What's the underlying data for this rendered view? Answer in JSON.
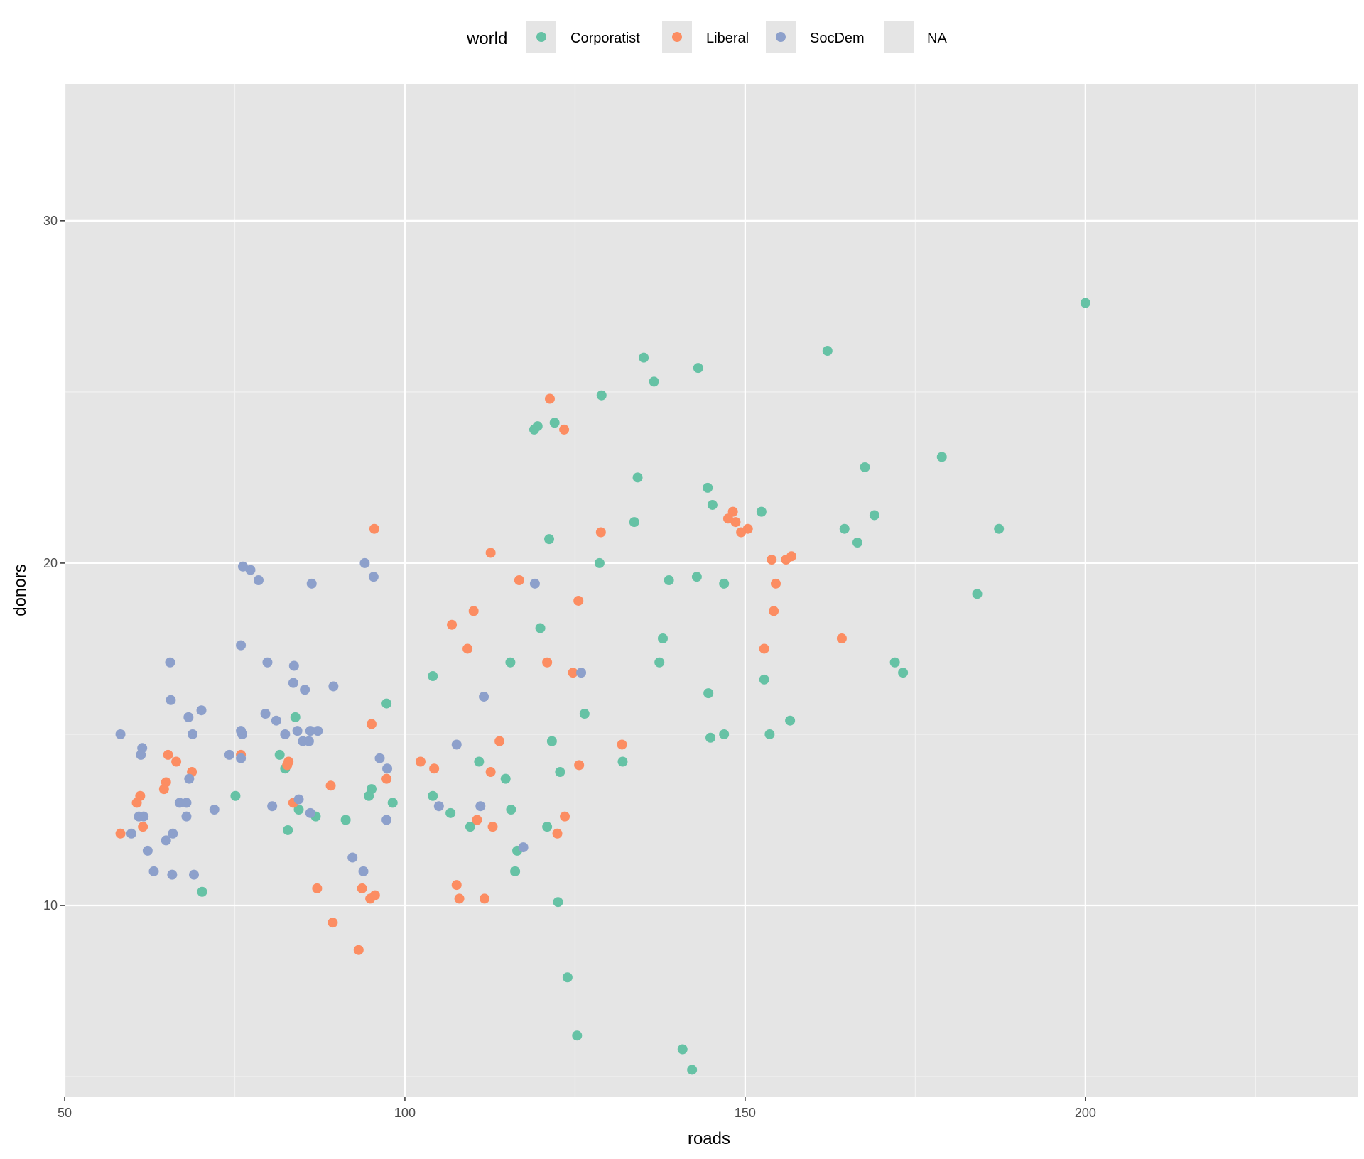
{
  "chart_data": {
    "type": "scatter",
    "xlabel": "roads",
    "ylabel": "donors",
    "xlim": [
      50,
      240
    ],
    "ylim": [
      4.4,
      34
    ],
    "x_ticks": [
      50,
      100,
      150,
      200
    ],
    "y_ticks": [
      10,
      20,
      30
    ],
    "x_tick_labels": [
      "50",
      "100",
      "150",
      "200"
    ],
    "y_tick_labels": [
      "10",
      "20",
      "30"
    ],
    "grid": true,
    "legend": {
      "title": "world",
      "placement": "top",
      "entries": [
        "Corporatist",
        "Liberal",
        "SocDem",
        "NA"
      ]
    },
    "series": [
      {
        "name": "Corporatist",
        "color": "#66C2A5",
        "points": [
          [
            200,
            27.6
          ],
          [
            162.1,
            26.2
          ],
          [
            135.1,
            26
          ],
          [
            143.1,
            25.7
          ],
          [
            136.6,
            25.3
          ],
          [
            128.9,
            24.9
          ],
          [
            119,
            23.9
          ],
          [
            119.5,
            24
          ],
          [
            122,
            24.1
          ],
          [
            178.9,
            23.1
          ],
          [
            167.6,
            22.8
          ],
          [
            134.2,
            22.5
          ],
          [
            144.5,
            22.2
          ],
          [
            145.2,
            21.7
          ],
          [
            152.4,
            21.5
          ],
          [
            169,
            21.4
          ],
          [
            133.7,
            21.2
          ],
          [
            164.6,
            21
          ],
          [
            187.3,
            21
          ],
          [
            121.2,
            20.7
          ],
          [
            166.5,
            20.6
          ],
          [
            128.6,
            20
          ],
          [
            142.9,
            19.6
          ],
          [
            138.8,
            19.5
          ],
          [
            146.9,
            19.4
          ],
          [
            184.1,
            19.1
          ],
          [
            119.9,
            18.1
          ],
          [
            137.9,
            17.8
          ],
          [
            115.5,
            17.1
          ],
          [
            137.4,
            17.1
          ],
          [
            172,
            17.1
          ],
          [
            173.2,
            16.8
          ],
          [
            104.1,
            16.7
          ],
          [
            152.8,
            16.6
          ],
          [
            144.6,
            16.2
          ],
          [
            97.3,
            15.9
          ],
          [
            126.4,
            15.6
          ],
          [
            83.9,
            15.5
          ],
          [
            156.6,
            15.4
          ],
          [
            153.6,
            15
          ],
          [
            146.9,
            15
          ],
          [
            144.9,
            14.9
          ],
          [
            121.6,
            14.8
          ],
          [
            81.6,
            14.4
          ],
          [
            110.9,
            14.2
          ],
          [
            132,
            14.2
          ],
          [
            82.4,
            14
          ],
          [
            122.8,
            13.9
          ],
          [
            114.8,
            13.7
          ],
          [
            95.1,
            13.4
          ],
          [
            75.1,
            13.2
          ],
          [
            94.7,
            13.2
          ],
          [
            104.1,
            13.2
          ],
          [
            98.2,
            13
          ],
          [
            84.4,
            12.8
          ],
          [
            115.6,
            12.8
          ],
          [
            106.7,
            12.7
          ],
          [
            86.9,
            12.6
          ],
          [
            91.3,
            12.5
          ],
          [
            109.6,
            12.3
          ],
          [
            120.9,
            12.3
          ],
          [
            82.8,
            12.2
          ],
          [
            116.5,
            11.6
          ],
          [
            116.2,
            11
          ],
          [
            70.2,
            10.4
          ],
          [
            122.5,
            10.1
          ],
          [
            123.9,
            7.9
          ],
          [
            125.3,
            6.2
          ],
          [
            140.8,
            5.8
          ],
          [
            142.2,
            5.2
          ]
        ]
      },
      {
        "name": "Liberal",
        "color": "#FC8D62",
        "points": [
          [
            121.3,
            24.8
          ],
          [
            123.4,
            23.9
          ],
          [
            148.2,
            21.5
          ],
          [
            147.5,
            21.3
          ],
          [
            148.6,
            21.2
          ],
          [
            150.4,
            21
          ],
          [
            149.4,
            20.9
          ],
          [
            95.5,
            21
          ],
          [
            128.8,
            20.9
          ],
          [
            112.6,
            20.3
          ],
          [
            153.9,
            20.1
          ],
          [
            156,
            20.1
          ],
          [
            156.8,
            20.2
          ],
          [
            116.8,
            19.5
          ],
          [
            154.5,
            19.4
          ],
          [
            125.5,
            18.9
          ],
          [
            110.1,
            18.6
          ],
          [
            154.2,
            18.6
          ],
          [
            106.9,
            18.2
          ],
          [
            164.2,
            17.8
          ],
          [
            109.2,
            17.5
          ],
          [
            152.8,
            17.5
          ],
          [
            120.9,
            17.1
          ],
          [
            124.7,
            16.8
          ],
          [
            95.1,
            15.3
          ],
          [
            113.9,
            14.8
          ],
          [
            131.9,
            14.7
          ],
          [
            65.2,
            14.4
          ],
          [
            75.9,
            14.4
          ],
          [
            82.9,
            14.2
          ],
          [
            82.7,
            14.1
          ],
          [
            102.3,
            14.2
          ],
          [
            125.6,
            14.1
          ],
          [
            66.4,
            14.2
          ],
          [
            104.3,
            14
          ],
          [
            68.7,
            13.9
          ],
          [
            112.6,
            13.9
          ],
          [
            97.3,
            13.7
          ],
          [
            64.9,
            13.6
          ],
          [
            64.6,
            13.4
          ],
          [
            89.1,
            13.5
          ],
          [
            61.1,
            13.2
          ],
          [
            60.6,
            13
          ],
          [
            83.6,
            13
          ],
          [
            123.5,
            12.6
          ],
          [
            110.6,
            12.5
          ],
          [
            61.5,
            12.3
          ],
          [
            112.9,
            12.3
          ],
          [
            58.2,
            12.1
          ],
          [
            122.4,
            12.1
          ],
          [
            107.6,
            10.6
          ],
          [
            87.1,
            10.5
          ],
          [
            93.7,
            10.5
          ],
          [
            95.6,
            10.3
          ],
          [
            94.9,
            10.2
          ],
          [
            108,
            10.2
          ],
          [
            111.7,
            10.2
          ],
          [
            89.4,
            9.5
          ],
          [
            93.2,
            8.7
          ]
        ]
      },
      {
        "name": "SocDem",
        "color": "#8DA0CB",
        "points": [
          [
            76.2,
            19.9
          ],
          [
            77.3,
            19.8
          ],
          [
            94.1,
            20
          ],
          [
            78.5,
            19.5
          ],
          [
            86.3,
            19.4
          ],
          [
            95.4,
            19.6
          ],
          [
            119.1,
            19.4
          ],
          [
            75.9,
            17.6
          ],
          [
            65.5,
            17.1
          ],
          [
            79.8,
            17.1
          ],
          [
            83.7,
            17
          ],
          [
            125.9,
            16.8
          ],
          [
            83.6,
            16.5
          ],
          [
            85.3,
            16.3
          ],
          [
            89.5,
            16.4
          ],
          [
            111.6,
            16.1
          ],
          [
            65.6,
            16
          ],
          [
            70.1,
            15.7
          ],
          [
            68.2,
            15.5
          ],
          [
            79.5,
            15.6
          ],
          [
            81.1,
            15.4
          ],
          [
            58.2,
            15
          ],
          [
            68.8,
            15
          ],
          [
            75.9,
            15.1
          ],
          [
            76.1,
            15
          ],
          [
            82.4,
            15
          ],
          [
            84.2,
            15.1
          ],
          [
            86.1,
            15.1
          ],
          [
            87.2,
            15.1
          ],
          [
            85,
            14.8
          ],
          [
            85.9,
            14.8
          ],
          [
            61.4,
            14.6
          ],
          [
            61.2,
            14.4
          ],
          [
            107.6,
            14.7
          ],
          [
            74.2,
            14.4
          ],
          [
            75.9,
            14.3
          ],
          [
            96.3,
            14.3
          ],
          [
            97.4,
            14
          ],
          [
            68.3,
            13.7
          ],
          [
            84.4,
            13.1
          ],
          [
            66.9,
            13
          ],
          [
            67.9,
            13
          ],
          [
            80.5,
            12.9
          ],
          [
            105,
            12.9
          ],
          [
            111.1,
            12.9
          ],
          [
            72,
            12.8
          ],
          [
            86.1,
            12.7
          ],
          [
            60.9,
            12.6
          ],
          [
            61.6,
            12.6
          ],
          [
            67.9,
            12.6
          ],
          [
            97.3,
            12.5
          ],
          [
            59.8,
            12.1
          ],
          [
            65.9,
            12.1
          ],
          [
            64.9,
            11.9
          ],
          [
            117.4,
            11.7
          ],
          [
            62.2,
            11.6
          ],
          [
            92.3,
            11.4
          ],
          [
            63.1,
            11
          ],
          [
            65.8,
            10.9
          ],
          [
            69,
            10.9
          ],
          [
            93.9,
            11
          ]
        ]
      },
      {
        "name": "NA",
        "color": "#E5E5E5",
        "points": []
      }
    ]
  }
}
